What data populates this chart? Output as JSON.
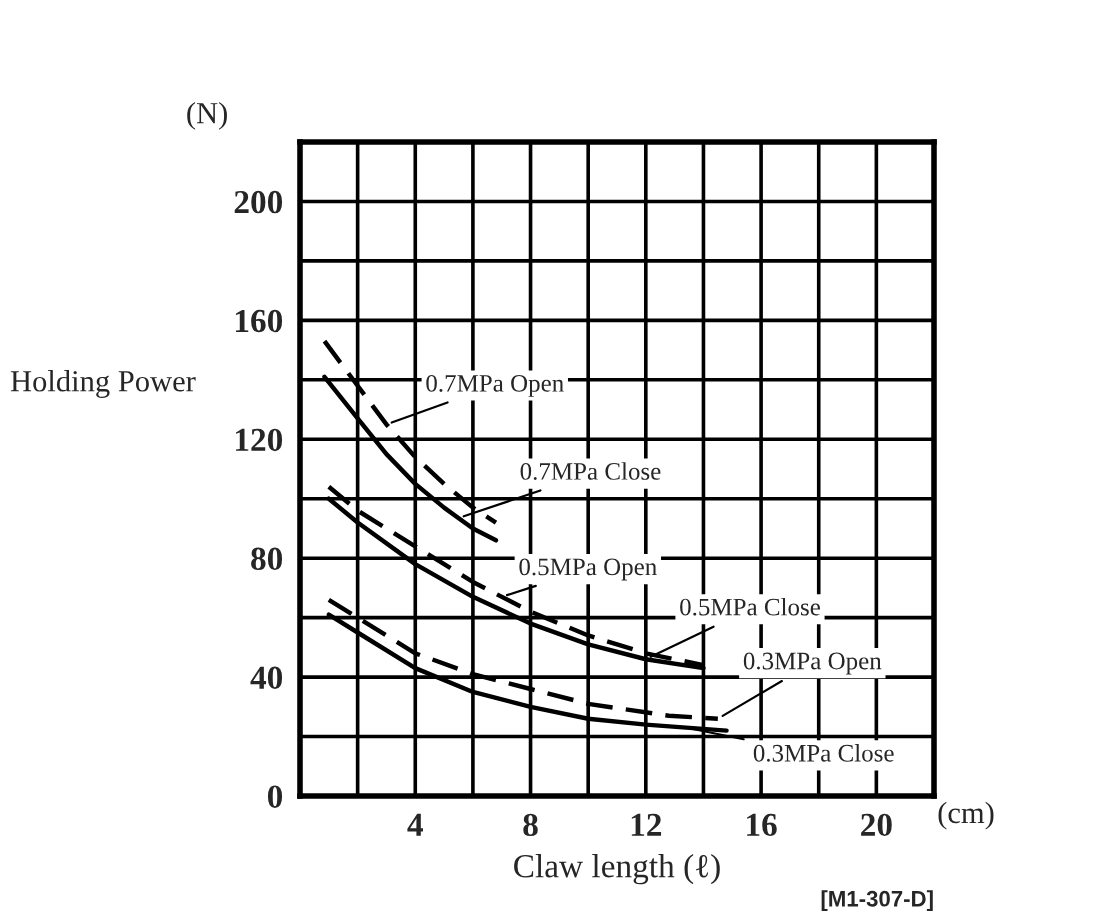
{
  "chart_data": {
    "type": "line",
    "xlabel": "Claw length (ℓ)",
    "ylabel": "Holding Power",
    "xlim": [
      0,
      22
    ],
    "ylim": [
      0,
      220
    ],
    "xticks": [
      {
        "value": 2,
        "label": null
      },
      4,
      {
        "value": 6,
        "label": null
      },
      8,
      {
        "value": 10,
        "label": null
      },
      12,
      {
        "value": 14,
        "label": null
      },
      16,
      {
        "value": 18,
        "label": null
      },
      20,
      {
        "value": 22,
        "label": null
      }
    ],
    "yticks": [
      0,
      {
        "value": 20,
        "label": null
      },
      40,
      {
        "value": 60,
        "label": null
      },
      80,
      {
        "value": 100,
        "label": null
      },
      120,
      {
        "value": 140,
        "label": null
      },
      160,
      {
        "value": 180,
        "label": null
      },
      200,
      {
        "value": 220,
        "label": null
      }
    ],
    "grid": true,
    "legend": false,
    "series": [
      {
        "name": "0.7MPa Open",
        "color": "#000000",
        "line_style": "dashed",
        "x": [
          0.85,
          2,
          3,
          4,
          5,
          6,
          6.8
        ],
        "values": [
          153,
          138,
          125,
          114,
          105,
          97,
          92
        ]
      },
      {
        "name": "0.7MPa Close",
        "color": "#000000",
        "line_style": "solid",
        "x": [
          0.85,
          2,
          3,
          4,
          5,
          6,
          6.8
        ],
        "values": [
          141,
          127,
          115,
          105,
          97,
          90,
          86
        ]
      },
      {
        "name": "0.5MPa Open",
        "color": "#000000",
        "line_style": "dashed",
        "x": [
          1,
          2,
          4,
          6,
          8,
          10,
          12,
          14
        ],
        "values": [
          104,
          96,
          84,
          72,
          62,
          54,
          48,
          44
        ]
      },
      {
        "name": "0.5MPa Close",
        "color": "#000000",
        "line_style": "solid",
        "x": [
          1,
          2,
          4,
          6,
          8,
          10,
          12,
          14
        ],
        "values": [
          100,
          92,
          78,
          67,
          58,
          51,
          46,
          43
        ]
      },
      {
        "name": "0.3MPa Open",
        "color": "#000000",
        "line_style": "dashed",
        "x": [
          1,
          2,
          4,
          6,
          8,
          10,
          12.8,
          14.5
        ],
        "values": [
          66,
          60,
          48,
          41,
          36,
          31,
          27,
          26
        ]
      },
      {
        "name": "0.3MPa Close",
        "color": "#000000",
        "line_style": "solid",
        "x": [
          1,
          2,
          4,
          6,
          8,
          10,
          12,
          14.8
        ],
        "values": [
          61,
          55,
          43,
          35,
          30,
          26,
          24,
          22
        ]
      }
    ],
    "annotations": [
      "(N)",
      "(cm)",
      "[M1-307-D]"
    ]
  }
}
